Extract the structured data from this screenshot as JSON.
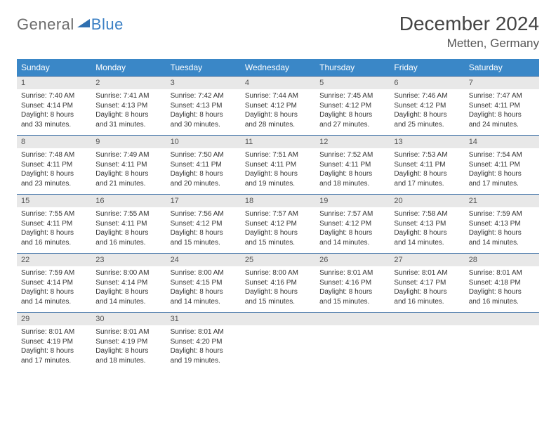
{
  "logo": {
    "text_general": "General",
    "text_blue": "Blue",
    "triangle_color": "#2f6fb0"
  },
  "title": "December 2024",
  "location": "Metten, Germany",
  "colors": {
    "header_bg": "#3a87c7",
    "header_text": "#ffffff",
    "daynum_bg": "#e8e8e8",
    "border": "#3a6ea5",
    "text": "#333333"
  },
  "weekdays": [
    "Sunday",
    "Monday",
    "Tuesday",
    "Wednesday",
    "Thursday",
    "Friday",
    "Saturday"
  ],
  "weeks": [
    [
      {
        "n": "1",
        "sunrise": "7:40 AM",
        "sunset": "4:14 PM",
        "daylight": "8 hours and 33 minutes."
      },
      {
        "n": "2",
        "sunrise": "7:41 AM",
        "sunset": "4:13 PM",
        "daylight": "8 hours and 31 minutes."
      },
      {
        "n": "3",
        "sunrise": "7:42 AM",
        "sunset": "4:13 PM",
        "daylight": "8 hours and 30 minutes."
      },
      {
        "n": "4",
        "sunrise": "7:44 AM",
        "sunset": "4:12 PM",
        "daylight": "8 hours and 28 minutes."
      },
      {
        "n": "5",
        "sunrise": "7:45 AM",
        "sunset": "4:12 PM",
        "daylight": "8 hours and 27 minutes."
      },
      {
        "n": "6",
        "sunrise": "7:46 AM",
        "sunset": "4:12 PM",
        "daylight": "8 hours and 25 minutes."
      },
      {
        "n": "7",
        "sunrise": "7:47 AM",
        "sunset": "4:11 PM",
        "daylight": "8 hours and 24 minutes."
      }
    ],
    [
      {
        "n": "8",
        "sunrise": "7:48 AM",
        "sunset": "4:11 PM",
        "daylight": "8 hours and 23 minutes."
      },
      {
        "n": "9",
        "sunrise": "7:49 AM",
        "sunset": "4:11 PM",
        "daylight": "8 hours and 21 minutes."
      },
      {
        "n": "10",
        "sunrise": "7:50 AM",
        "sunset": "4:11 PM",
        "daylight": "8 hours and 20 minutes."
      },
      {
        "n": "11",
        "sunrise": "7:51 AM",
        "sunset": "4:11 PM",
        "daylight": "8 hours and 19 minutes."
      },
      {
        "n": "12",
        "sunrise": "7:52 AM",
        "sunset": "4:11 PM",
        "daylight": "8 hours and 18 minutes."
      },
      {
        "n": "13",
        "sunrise": "7:53 AM",
        "sunset": "4:11 PM",
        "daylight": "8 hours and 17 minutes."
      },
      {
        "n": "14",
        "sunrise": "7:54 AM",
        "sunset": "4:11 PM",
        "daylight": "8 hours and 17 minutes."
      }
    ],
    [
      {
        "n": "15",
        "sunrise": "7:55 AM",
        "sunset": "4:11 PM",
        "daylight": "8 hours and 16 minutes."
      },
      {
        "n": "16",
        "sunrise": "7:55 AM",
        "sunset": "4:11 PM",
        "daylight": "8 hours and 16 minutes."
      },
      {
        "n": "17",
        "sunrise": "7:56 AM",
        "sunset": "4:12 PM",
        "daylight": "8 hours and 15 minutes."
      },
      {
        "n": "18",
        "sunrise": "7:57 AM",
        "sunset": "4:12 PM",
        "daylight": "8 hours and 15 minutes."
      },
      {
        "n": "19",
        "sunrise": "7:57 AM",
        "sunset": "4:12 PM",
        "daylight": "8 hours and 14 minutes."
      },
      {
        "n": "20",
        "sunrise": "7:58 AM",
        "sunset": "4:13 PM",
        "daylight": "8 hours and 14 minutes."
      },
      {
        "n": "21",
        "sunrise": "7:59 AM",
        "sunset": "4:13 PM",
        "daylight": "8 hours and 14 minutes."
      }
    ],
    [
      {
        "n": "22",
        "sunrise": "7:59 AM",
        "sunset": "4:14 PM",
        "daylight": "8 hours and 14 minutes."
      },
      {
        "n": "23",
        "sunrise": "8:00 AM",
        "sunset": "4:14 PM",
        "daylight": "8 hours and 14 minutes."
      },
      {
        "n": "24",
        "sunrise": "8:00 AM",
        "sunset": "4:15 PM",
        "daylight": "8 hours and 14 minutes."
      },
      {
        "n": "25",
        "sunrise": "8:00 AM",
        "sunset": "4:16 PM",
        "daylight": "8 hours and 15 minutes."
      },
      {
        "n": "26",
        "sunrise": "8:01 AM",
        "sunset": "4:16 PM",
        "daylight": "8 hours and 15 minutes."
      },
      {
        "n": "27",
        "sunrise": "8:01 AM",
        "sunset": "4:17 PM",
        "daylight": "8 hours and 16 minutes."
      },
      {
        "n": "28",
        "sunrise": "8:01 AM",
        "sunset": "4:18 PM",
        "daylight": "8 hours and 16 minutes."
      }
    ],
    [
      {
        "n": "29",
        "sunrise": "8:01 AM",
        "sunset": "4:19 PM",
        "daylight": "8 hours and 17 minutes."
      },
      {
        "n": "30",
        "sunrise": "8:01 AM",
        "sunset": "4:19 PM",
        "daylight": "8 hours and 18 minutes."
      },
      {
        "n": "31",
        "sunrise": "8:01 AM",
        "sunset": "4:20 PM",
        "daylight": "8 hours and 19 minutes."
      },
      null,
      null,
      null,
      null
    ]
  ],
  "labels": {
    "sunrise_prefix": "Sunrise: ",
    "sunset_prefix": "Sunset: ",
    "daylight_prefix": "Daylight: "
  }
}
